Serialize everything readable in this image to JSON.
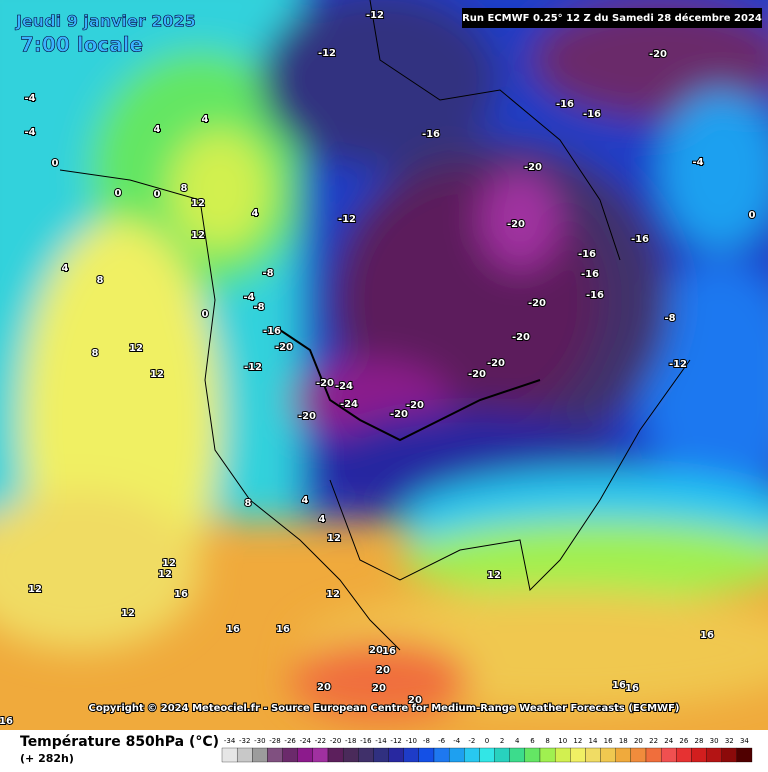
{
  "header": {
    "date": "Jeudi 9 janvier 2025",
    "time": "7:00 locale",
    "run": "Run ECMWF 0.25° 12 Z du Samedi 28 décembre 2024"
  },
  "copyright": "Copyright © 2024 Meteociel.fr - Source European Centre for Medium-Range Weather Forecasts (ECMWF)",
  "legend": {
    "title": "Température 850hPa (°C)",
    "subtitle": "(+ 282h)",
    "ticks": [
      -34,
      -32,
      -30,
      -28,
      -26,
      -24,
      -22,
      -20,
      -18,
      -16,
      -14,
      -12,
      -10,
      -8,
      -6,
      -4,
      -2,
      0,
      2,
      4,
      6,
      8,
      10,
      12,
      14,
      16,
      18,
      20,
      22,
      24,
      26,
      28,
      30,
      32,
      34
    ],
    "colors": [
      "#e6e6e6",
      "#c8c8c8",
      "#9c9c9c",
      "#805080",
      "#6b2a6b",
      "#8c1a8c",
      "#a030a0",
      "#5c1f5c",
      "#4a2a5a",
      "#40306a",
      "#303080",
      "#2828a0",
      "#1e3cc8",
      "#1450e6",
      "#1e78f0",
      "#1ea0f0",
      "#28c8f0",
      "#32e6e6",
      "#28d2be",
      "#3cdc8c",
      "#64e664",
      "#a0f050",
      "#d2f050",
      "#f0f064",
      "#f0dc64",
      "#f0c850",
      "#f0aa3c",
      "#f08c3c",
      "#f06e3c",
      "#f05050",
      "#e63232",
      "#d21e1e",
      "#b41414",
      "#8c0a0a",
      "#500000"
    ]
  },
  "contour_labels": [
    -4,
    -4,
    4,
    4,
    0,
    0,
    0,
    8,
    12,
    4,
    12,
    4,
    8,
    8,
    12,
    12,
    -12,
    -8,
    -4,
    -8,
    0,
    -16,
    -20,
    -12,
    -16,
    -20,
    -20,
    -16,
    -16,
    -16,
    -20,
    -20,
    -20,
    -20,
    -20,
    -24,
    -24,
    -20,
    -20,
    -20,
    -20,
    -16,
    -16,
    -16,
    -8,
    -12,
    -4,
    0,
    8,
    4,
    4,
    12,
    12,
    12,
    12,
    16,
    12,
    12,
    12,
    16,
    16,
    20,
    16,
    20,
    20,
    20,
    20,
    16,
    16,
    16,
    16,
    -12,
    -12
  ]
}
